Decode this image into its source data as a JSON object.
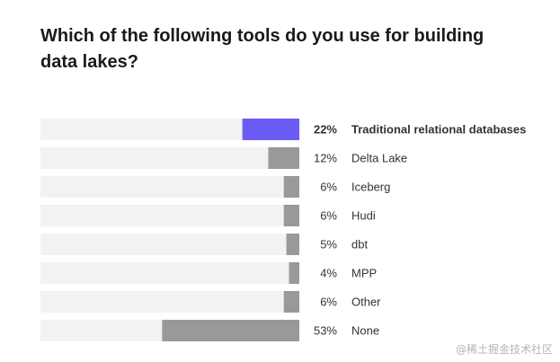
{
  "chart_data": {
    "type": "bar",
    "orientation": "horizontal",
    "title": "Which of the following tools do you use for building data lakes?",
    "categories": [
      "Traditional relational databases",
      "Delta Lake",
      "Iceberg",
      "Hudi",
      "dbt",
      "MPP",
      "Other",
      "None"
    ],
    "values": [
      22,
      12,
      6,
      6,
      5,
      4,
      6,
      53
    ],
    "value_labels": [
      "22%",
      "12%",
      "6%",
      "6%",
      "5%",
      "4%",
      "6%",
      "53%"
    ],
    "highlight_index": 0,
    "xlim": [
      0,
      100
    ],
    "grid": false,
    "colors": {
      "track": "#f2f2f2",
      "bar": "#999999",
      "highlight": "#6b5cf6",
      "text": "#333333"
    }
  },
  "watermark": "@稀土掘金技术社区"
}
